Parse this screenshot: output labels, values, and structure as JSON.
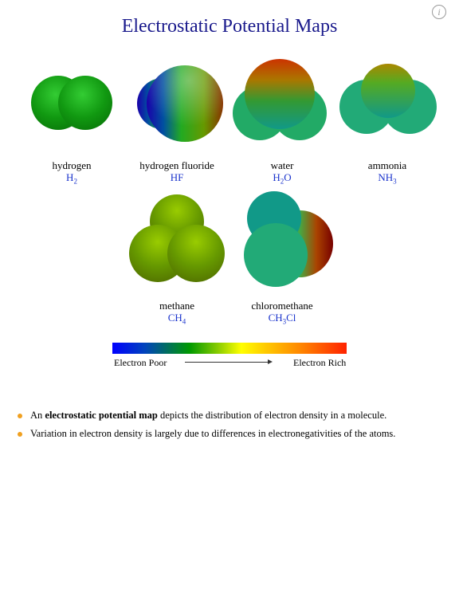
{
  "title": "Electrostatic Potential Maps",
  "info_icon": "info-icon",
  "molecules": [
    {
      "name": "hydrogen",
      "f1": "H",
      "s1": "2",
      "f2": "",
      "s2": "",
      "f3": ""
    },
    {
      "name": "hydrogen fluoride",
      "f1": "HF",
      "s1": "",
      "f2": "",
      "s2": "",
      "f3": ""
    },
    {
      "name": "water",
      "f1": "H",
      "s1": "2",
      "f2": "O",
      "s2": "",
      "f3": ""
    },
    {
      "name": "ammonia",
      "f1": "NH",
      "s1": "3",
      "f2": "",
      "s2": "",
      "f3": ""
    },
    {
      "name": "methane",
      "f1": "CH",
      "s1": "4",
      "f2": "",
      "s2": "",
      "f3": ""
    },
    {
      "name": "chloromethane",
      "f1": "CH",
      "s1": "3",
      "f2": "Cl",
      "s2": "",
      "f3": ""
    }
  ],
  "scale": {
    "left_label": "Electron Poor",
    "right_label": "Electron Rich"
  },
  "bullets": {
    "b1_pre": "An ",
    "b1_bold": "electrostatic potential map",
    "b1_post": " depicts the distribution of electron density in a molecule.",
    "b2": "Variation in electron density is largely due to differences in electronegativities of the atoms."
  },
  "colors": {
    "title": "#1a1a8c",
    "formula": "#1a33cc",
    "bullet": "#f0a020"
  }
}
